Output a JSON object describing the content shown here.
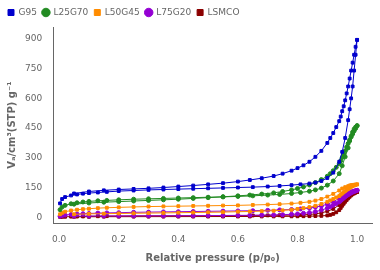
{
  "chart_data": {
    "type": "line",
    "x_label": "Relative pressure (p/p₀)",
    "y_label": "Vₐ/cm³(STP) g⁻¹",
    "xlim": [
      -0.02,
      1.05
    ],
    "ylim": [
      -30,
      960
    ],
    "xticks": [
      {
        "value": 0.0,
        "label": "0.0"
      },
      0.2,
      0.4,
      0.6,
      0.8,
      {
        "value": 1.0,
        "label": "1.0"
      }
    ],
    "yticks": [
      0,
      150,
      300,
      450,
      600,
      750,
      900
    ],
    "grid": false,
    "legend": "upper left",
    "series": [
      {
        "name": "G95",
        "color": "#0000CD",
        "marker": "square",
        "x": [
          0.003,
          0.01,
          0.02,
          0.04,
          0.06,
          0.08,
          0.1,
          0.13,
          0.16,
          0.2,
          0.25,
          0.3,
          0.35,
          0.4,
          0.45,
          0.5,
          0.55,
          0.6,
          0.65,
          0.7,
          0.74,
          0.78,
          0.81,
          0.84,
          0.86,
          0.88,
          0.9,
          0.92,
          0.94,
          0.95,
          0.96,
          0.97,
          0.975,
          0.98,
          0.985,
          0.99,
          0.995,
          1.0
        ],
        "values": [
          70,
          92,
          102,
          110,
          115,
          119,
          122,
          125,
          128,
          132,
          135,
          138,
          140,
          142,
          144,
          146,
          148,
          150,
          152,
          155,
          158,
          162,
          166,
          170,
          175,
          183,
          198,
          225,
          280,
          330,
          400,
          490,
          545,
          600,
          660,
          740,
          820,
          895
        ]
      },
      {
        "color": "#0000CD",
        "marker": "square",
        "x": [
          1.0,
          0.995,
          0.99,
          0.985,
          0.98,
          0.975,
          0.97,
          0.965,
          0.96,
          0.955,
          0.95,
          0.945,
          0.94,
          0.93,
          0.92,
          0.91,
          0.9,
          0.88,
          0.86,
          0.84,
          0.82,
          0.8,
          0.78,
          0.75,
          0.72,
          0.68,
          0.64,
          0.6,
          0.55,
          0.5,
          0.45,
          0.4,
          0.35,
          0.3,
          0.25,
          0.2,
          0.15,
          0.1,
          0.05
        ],
        "values": [
          895,
          860,
          820,
          780,
          740,
          700,
          660,
          625,
          590,
          560,
          535,
          508,
          485,
          455,
          425,
          400,
          375,
          335,
          305,
          280,
          262,
          248,
          235,
          220,
          208,
          197,
          188,
          180,
          172,
          166,
          160,
          155,
          150,
          146,
          143,
          140,
          136,
          130,
          120
        ]
      },
      {
        "name": "L25G70",
        "color": "#228B22",
        "marker": "circle",
        "x": [
          0.003,
          0.01,
          0.02,
          0.04,
          0.06,
          0.08,
          0.1,
          0.13,
          0.16,
          0.2,
          0.25,
          0.3,
          0.35,
          0.4,
          0.45,
          0.5,
          0.55,
          0.6,
          0.65,
          0.7,
          0.74,
          0.78,
          0.81,
          0.84,
          0.86,
          0.88,
          0.9,
          0.92,
          0.94,
          0.95,
          0.96,
          0.97,
          0.975,
          0.98,
          0.985,
          0.99,
          0.995,
          1.0
        ],
        "values": [
          38,
          52,
          60,
          68,
          73,
          77,
          80,
          83,
          85,
          88,
          91,
          93,
          95,
          97,
          99,
          101,
          103,
          105,
          108,
          112,
          115,
          120,
          125,
          131,
          138,
          147,
          162,
          183,
          220,
          260,
          305,
          350,
          385,
          410,
          430,
          445,
          455,
          462
        ]
      },
      {
        "color": "#228B22",
        "marker": "circle",
        "x": [
          1.0,
          0.995,
          0.99,
          0.985,
          0.98,
          0.975,
          0.97,
          0.965,
          0.96,
          0.955,
          0.95,
          0.945,
          0.94,
          0.93,
          0.92,
          0.91,
          0.9,
          0.88,
          0.86,
          0.84,
          0.82,
          0.8,
          0.78,
          0.75,
          0.72,
          0.68,
          0.64,
          0.6,
          0.55,
          0.5,
          0.45,
          0.4,
          0.35,
          0.3,
          0.25,
          0.2,
          0.15,
          0.1,
          0.05
        ],
        "values": [
          462,
          448,
          435,
          420,
          405,
          390,
          372,
          355,
          335,
          318,
          302,
          285,
          270,
          252,
          235,
          220,
          207,
          190,
          175,
          163,
          153,
          145,
          138,
          130,
          123,
          117,
          112,
          108,
          103,
          99,
          95,
          91,
          88,
          85,
          82,
          79,
          76,
          72,
          66
        ]
      },
      {
        "name": "L50G45",
        "color": "#FF8C00",
        "marker": "square",
        "x": [
          0.003,
          0.01,
          0.02,
          0.04,
          0.06,
          0.08,
          0.1,
          0.13,
          0.16,
          0.2,
          0.25,
          0.3,
          0.35,
          0.4,
          0.45,
          0.5,
          0.55,
          0.6,
          0.65,
          0.7,
          0.74,
          0.78,
          0.81,
          0.84,
          0.86,
          0.88,
          0.9,
          0.92,
          0.94,
          0.95,
          0.96,
          0.97,
          0.975,
          0.98,
          0.985,
          0.99,
          0.995,
          1.0
        ],
        "values": [
          15,
          22,
          28,
          34,
          38,
          41,
          43,
          46,
          48,
          50,
          52,
          54,
          55,
          56,
          57,
          58,
          59,
          60,
          62,
          64,
          66,
          69,
          73,
          78,
          84,
          92,
          104,
          118,
          135,
          145,
          152,
          157,
          160,
          162,
          163,
          164,
          165,
          166
        ]
      },
      {
        "color": "#FF8C00",
        "marker": "square",
        "x": [
          1.0,
          0.995,
          0.99,
          0.985,
          0.98,
          0.975,
          0.97,
          0.965,
          0.96,
          0.955,
          0.95,
          0.945,
          0.94,
          0.93,
          0.92,
          0.91,
          0.9,
          0.88,
          0.86,
          0.84,
          0.82,
          0.8,
          0.78,
          0.75,
          0.72,
          0.68,
          0.64,
          0.6,
          0.55,
          0.5,
          0.45,
          0.4,
          0.35,
          0.3,
          0.25,
          0.2,
          0.15,
          0.1,
          0.05
        ],
        "values": [
          166,
          163,
          160,
          157,
          153,
          148,
          143,
          138,
          132,
          126,
          120,
          114,
          107,
          100,
          92,
          85,
          78,
          67,
          58,
          51,
          46,
          42,
          38,
          35,
          33,
          31,
          29,
          28,
          26,
          25,
          24,
          23,
          22,
          21,
          20,
          19,
          18,
          17,
          15
        ]
      },
      {
        "name": "L75G20",
        "color": "#9400D3",
        "marker": "circle",
        "x": [
          0.003,
          0.01,
          0.02,
          0.04,
          0.06,
          0.08,
          0.1,
          0.13,
          0.16,
          0.2,
          0.25,
          0.3,
          0.35,
          0.4,
          0.45,
          0.5,
          0.55,
          0.6,
          0.65,
          0.7,
          0.74,
          0.78,
          0.81,
          0.84,
          0.86,
          0.88,
          0.9,
          0.92,
          0.94,
          0.95,
          0.96,
          0.97,
          0.975,
          0.98,
          0.985,
          0.99,
          0.995,
          1.0
        ],
        "values": [
          5,
          8,
          11,
          14,
          16,
          18,
          19,
          21,
          22,
          23,
          25,
          26,
          27,
          28,
          29,
          30,
          31,
          32,
          33,
          35,
          37,
          39,
          42,
          46,
          51,
          57,
          66,
          78,
          95,
          105,
          113,
          120,
          124,
          127,
          130,
          132,
          134,
          136
        ]
      },
      {
        "color": "#9400D3",
        "marker": "circle",
        "x": [
          1.0,
          0.995,
          0.99,
          0.985,
          0.98,
          0.975,
          0.97,
          0.965,
          0.96,
          0.955,
          0.95,
          0.945,
          0.94,
          0.93,
          0.92,
          0.91,
          0.9,
          0.88,
          0.86,
          0.84,
          0.82,
          0.8,
          0.78,
          0.75,
          0.72,
          0.68,
          0.64,
          0.6,
          0.55,
          0.5,
          0.45,
          0.4,
          0.35,
          0.3,
          0.25,
          0.2,
          0.15,
          0.1,
          0.05
        ],
        "values": [
          136,
          133,
          130,
          127,
          123,
          119,
          114,
          109,
          103,
          97,
          91,
          84,
          77,
          69,
          61,
          53,
          46,
          36,
          28,
          23,
          20,
          17,
          15,
          13,
          12,
          11,
          10,
          9.5,
          9,
          8.5,
          8,
          7.8,
          7.5,
          7.2,
          7.0,
          6.8,
          6.5,
          6.2,
          5.5
        ]
      },
      {
        "name": "LSMCO",
        "color": "#8B0000",
        "marker": "square",
        "x": [
          0.003,
          0.01,
          0.02,
          0.04,
          0.06,
          0.08,
          0.1,
          0.13,
          0.16,
          0.2,
          0.25,
          0.3,
          0.35,
          0.4,
          0.45,
          0.5,
          0.55,
          0.6,
          0.65,
          0.7,
          0.74,
          0.78,
          0.81,
          0.84,
          0.86,
          0.88,
          0.9,
          0.92,
          0.94,
          0.95,
          0.96,
          0.97,
          0.975,
          0.98,
          0.985,
          0.99,
          0.995,
          1.0
        ],
        "values": [
          1.5,
          2,
          2.5,
          3,
          3.5,
          4,
          4.5,
          5,
          5.5,
          6,
          6.5,
          7,
          7.2,
          7.5,
          7.8,
          8,
          8.2,
          8.5,
          9,
          9.5,
          10,
          11,
          12,
          14,
          17,
          22,
          30,
          42,
          62,
          76,
          90,
          105,
          113,
          118,
          122,
          124,
          126,
          127
        ]
      },
      {
        "color": "#8B0000",
        "marker": "square",
        "x": [
          1.0,
          0.995,
          0.99,
          0.985,
          0.98,
          0.975,
          0.97,
          0.965,
          0.96,
          0.955,
          0.95,
          0.945,
          0.94,
          0.93,
          0.92,
          0.91,
          0.9,
          0.88,
          0.86,
          0.84,
          0.82,
          0.8,
          0.78,
          0.75,
          0.72,
          0.68,
          0.64,
          0.6,
          0.55,
          0.5,
          0.45,
          0.4,
          0.35,
          0.3,
          0.25,
          0.2,
          0.15,
          0.1,
          0.05
        ],
        "values": [
          127,
          124,
          120,
          116,
          110,
          103,
          95,
          87,
          78,
          68,
          58,
          47,
          36,
          25,
          17,
          12,
          9,
          7,
          6,
          5.5,
          5.2,
          4.9,
          4.7,
          4.5,
          4.3,
          4.1,
          3.9,
          3.8,
          3.6,
          3.5,
          3.4,
          3.3,
          3.2,
          3.1,
          3.0,
          2.9,
          2.8,
          2.5,
          2.0
        ]
      }
    ]
  }
}
